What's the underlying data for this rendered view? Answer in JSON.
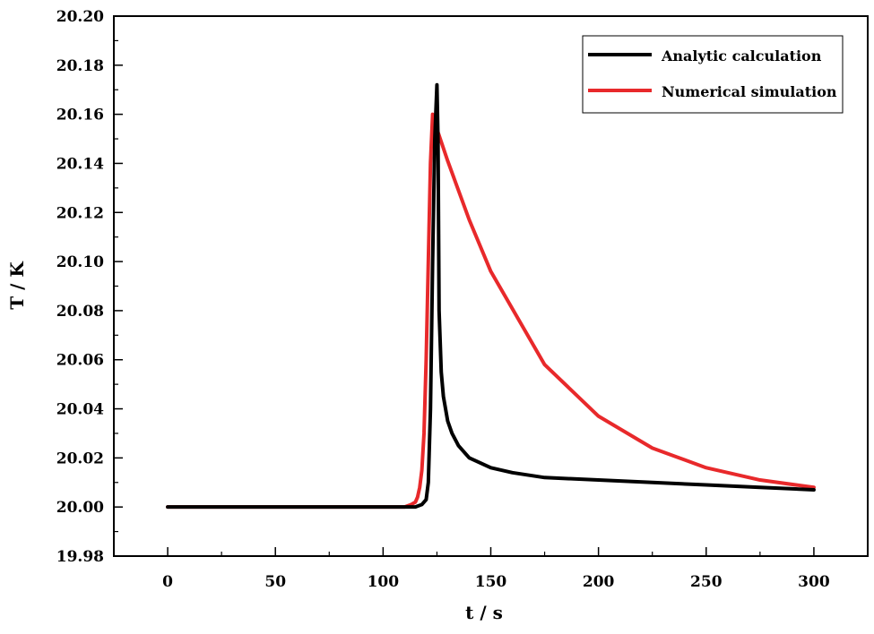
{
  "chart_data": {
    "type": "line",
    "title": "",
    "xlabel": "t / s",
    "ylabel": "T / K",
    "xlim": [
      -25,
      325
    ],
    "ylim": [
      19.98,
      20.2
    ],
    "xticks": [
      0,
      50,
      100,
      150,
      200,
      250,
      300
    ],
    "xtick_labels": [
      "0",
      "50",
      "100",
      "150",
      "200",
      "250",
      "300"
    ],
    "yticks": [
      19.98,
      20.0,
      20.02,
      20.04,
      20.06,
      20.08,
      20.1,
      20.12,
      20.14,
      20.16,
      20.18,
      20.2
    ],
    "ytick_labels": [
      "19.98",
      "20.00",
      "20.02",
      "20.04",
      "20.06",
      "20.08",
      "20.10",
      "20.12",
      "20.14",
      "20.16",
      "20.18",
      "20.20"
    ],
    "grid": false,
    "legend_position": "top-right",
    "series": [
      {
        "name": "Analytic calculation",
        "color": "#000000",
        "x": [
          0,
          50,
          100,
          115,
          118,
          120,
          121,
          122,
          123,
          124,
          125,
          125.5,
          126,
          127,
          128,
          130,
          132,
          135,
          140,
          145,
          150,
          160,
          175,
          200,
          225,
          250,
          275,
          300
        ],
        "y": [
          20.0,
          20.0,
          20.0,
          20.0,
          20.001,
          20.003,
          20.01,
          20.04,
          20.1,
          20.15,
          20.172,
          20.15,
          20.08,
          20.055,
          20.045,
          20.035,
          20.03,
          20.025,
          20.02,
          20.018,
          20.016,
          20.014,
          20.012,
          20.011,
          20.01,
          20.009,
          20.008,
          20.007
        ]
      },
      {
        "name": "Numerical simulation",
        "color": "#e8292b",
        "x": [
          0,
          50,
          100,
          110,
          113,
          115,
          116,
          117,
          118,
          119,
          120,
          121,
          122,
          123,
          124,
          125,
          130,
          140,
          150,
          175,
          200,
          225,
          250,
          275,
          300
        ],
        "y": [
          20.0,
          20.0,
          20.0,
          20.0,
          20.001,
          20.002,
          20.004,
          20.008,
          20.015,
          20.03,
          20.06,
          20.1,
          20.14,
          20.16,
          20.157,
          20.154,
          20.141,
          20.117,
          20.096,
          20.058,
          20.037,
          20.024,
          20.016,
          20.011,
          20.008
        ]
      }
    ]
  }
}
